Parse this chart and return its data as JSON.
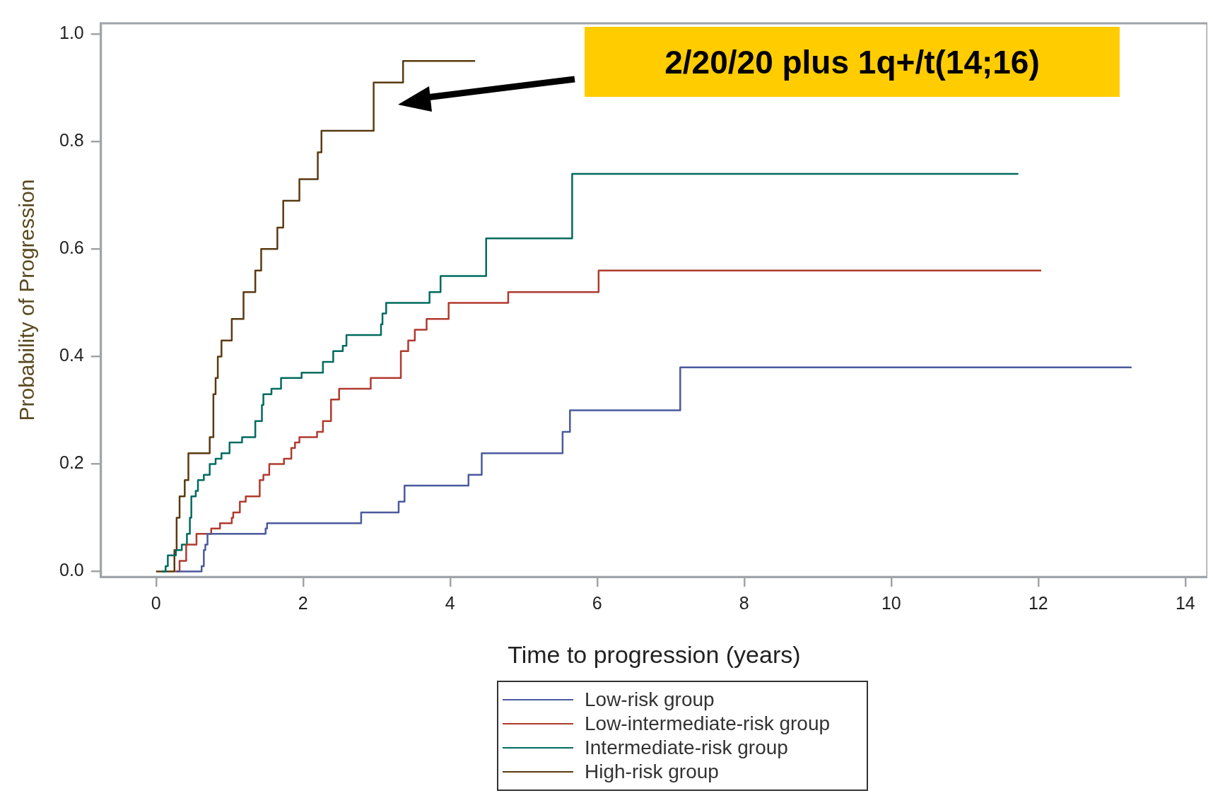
{
  "chart_data": {
    "type": "step",
    "xlabel": "Time to progression (years)",
    "ylabel": "Probability of Progression",
    "xlim": [
      -0.75,
      14.3
    ],
    "ylim": [
      -0.01,
      1.02
    ],
    "xticks": [
      0,
      2,
      4,
      6,
      8,
      10,
      12,
      14
    ],
    "yticks": [
      {
        "value": 0,
        "label": "0.0"
      },
      {
        "value": 0.2,
        "label": "0.2"
      },
      {
        "value": 0.4,
        "label": "0.4"
      },
      {
        "value": 0.6,
        "label": "0.6"
      },
      {
        "value": 0.8,
        "label": "0.8"
      },
      {
        "value": 1,
        "label": "1.0"
      }
    ],
    "legend": "bottom",
    "annotations": [
      "2/20/20 plus 1q+/t(14;16)"
    ],
    "series": [
      {
        "name": "Low-risk group",
        "color": "#4a5a9e",
        "x": [
          0.28,
          0.62,
          0.65,
          0.67,
          0.7,
          1.49,
          1.51,
          2.79,
          3.3,
          3.38,
          4.25,
          4.43,
          5.53,
          5.63,
          7.13,
          13.27
        ],
        "values": [
          0,
          0.01,
          0.04,
          0.05,
          0.07,
          0.08,
          0.09,
          0.11,
          0.13,
          0.16,
          0.18,
          0.22,
          0.26,
          0.3,
          0.38,
          0.38
        ]
      },
      {
        "name": "Low-intermediate-risk group",
        "color": "#b03a2e",
        "x": [
          0.26,
          0.32,
          0.41,
          0.49,
          0.55,
          0.75,
          0.87,
          1.03,
          1.05,
          1.14,
          1.22,
          1.41,
          1.46,
          1.54,
          1.74,
          1.84,
          1.89,
          1.95,
          2.19,
          2.27,
          2.38,
          2.49,
          2.92,
          3.33,
          3.43,
          3.52,
          3.68,
          3.98,
          4.79,
          6.02,
          12.04
        ],
        "values": [
          0,
          0.02,
          0.05,
          0.05,
          0.07,
          0.08,
          0.09,
          0.1,
          0.11,
          0.13,
          0.14,
          0.17,
          0.18,
          0.2,
          0.21,
          0.23,
          0.24,
          0.25,
          0.26,
          0.28,
          0.32,
          0.34,
          0.36,
          0.41,
          0.43,
          0.45,
          0.47,
          0.5,
          0.52,
          0.56,
          0.56
        ]
      },
      {
        "name": "Intermediate-risk group",
        "color": "#006b5f",
        "x": [
          0.08,
          0.13,
          0.16,
          0.27,
          0.35,
          0.42,
          0.46,
          0.48,
          0.54,
          0.57,
          0.65,
          0.73,
          0.81,
          0.89,
          1,
          1.17,
          1.35,
          1.44,
          1.46,
          1.57,
          1.7,
          1.98,
          2.27,
          2.41,
          2.54,
          2.59,
          3.06,
          3.08,
          3.13,
          3.72,
          3.87,
          4.49,
          5.66,
          11.73
        ],
        "values": [
          0,
          0.01,
          0.03,
          0.04,
          0.05,
          0.07,
          0.1,
          0.14,
          0.15,
          0.17,
          0.18,
          0.2,
          0.21,
          0.22,
          0.24,
          0.25,
          0.28,
          0.31,
          0.33,
          0.34,
          0.36,
          0.37,
          0.39,
          0.41,
          0.42,
          0.44,
          0.46,
          0.48,
          0.5,
          0.52,
          0.55,
          0.62,
          0.74,
          0.74
        ]
      },
      {
        "name": "High-risk group",
        "color": "#5a3a10",
        "x": [
          0,
          0.25,
          0.28,
          0.32,
          0.39,
          0.44,
          0.73,
          0.78,
          0.81,
          0.84,
          0.89,
          1.03,
          1.19,
          1.35,
          1.43,
          1.65,
          1.73,
          1.95,
          2.2,
          2.25,
          2.96,
          3.36,
          4.34
        ],
        "values": [
          0,
          0.04,
          0.1,
          0.14,
          0.17,
          0.22,
          0.25,
          0.33,
          0.36,
          0.4,
          0.43,
          0.47,
          0.52,
          0.56,
          0.6,
          0.64,
          0.69,
          0.73,
          0.78,
          0.82,
          0.91,
          0.95,
          0.95
        ]
      }
    ]
  }
}
